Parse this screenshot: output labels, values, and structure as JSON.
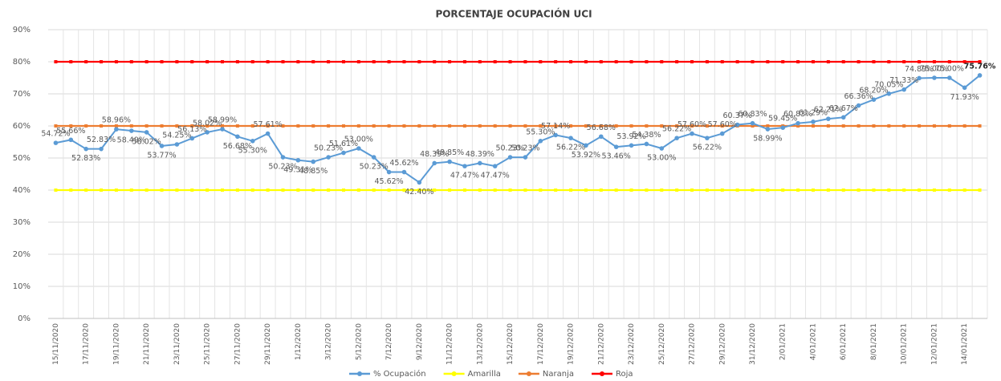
{
  "chart_data": {
    "type": "line",
    "title": "PORCENTAJE OCUPACIÓN UCI",
    "categories": [
      "15/11/2020",
      null,
      "17/11/2020",
      null,
      "19/11/2020",
      null,
      "21/11/2020",
      null,
      "23/11/2020",
      null,
      "25/11/2020",
      null,
      "27/11/2020",
      null,
      "29/11/2020",
      null,
      "1/12/2020",
      null,
      "3/12/2020",
      null,
      "5/12/2020",
      null,
      "7/12/2020",
      null,
      "9/12/2020",
      null,
      "11/12/2020",
      null,
      "13/12/2020",
      null,
      "15/12/2020",
      null,
      "17/12/2020",
      null,
      "19/12/2020",
      null,
      "21/12/2020",
      null,
      "23/12/2020",
      null,
      "25/12/2020",
      null,
      "27/12/2020",
      null,
      "29/12/2020",
      null,
      "31/12/2020",
      null,
      "2/01/2021",
      null,
      "4/01/2021",
      null,
      "6/01/2021",
      null,
      "8/01/2021",
      null,
      "10/01/2021",
      null,
      "12/01/2021",
      null,
      "14/01/2021",
      null
    ],
    "series": [
      {
        "name": "% Ocupación",
        "color": "#5b9bd5",
        "values": [
          54.72,
          55.66,
          52.83,
          52.83,
          58.96,
          58.49,
          58.02,
          53.77,
          54.25,
          56.13,
          58.02,
          58.99,
          56.68,
          55.3,
          57.61,
          50.23,
          49.31,
          48.85,
          50.23,
          51.61,
          53.0,
          50.23,
          45.62,
          45.62,
          42.4,
          48.39,
          48.85,
          47.47,
          48.39,
          47.47,
          50.23,
          50.23,
          55.3,
          57.14,
          56.22,
          53.92,
          56.68,
          53.46,
          53.92,
          54.38,
          53.0,
          56.22,
          57.6,
          56.22,
          57.6,
          60.37,
          60.83,
          58.99,
          59.45,
          60.83,
          61.29,
          62.21,
          62.67,
          66.36,
          68.2,
          70.05,
          71.33,
          74.89,
          75.0,
          75.0,
          71.93,
          75.76
        ],
        "value_labels": [
          "54.72%",
          "55.66%",
          "52.83%",
          "52.83%",
          "58.96%",
          "58.49%",
          "58.02%",
          "53.77%",
          "54.25%",
          "56.13%",
          "58.02%",
          "58.99%",
          "56.68%",
          "55.30%",
          "57.61%",
          "50.23%",
          "49.31%",
          "48.85%",
          "50.23%",
          "51.61%",
          "53.00%",
          "50.23%",
          "45.62%",
          "45.62%",
          "42.40%",
          "48.39%",
          "48.85%",
          "47.47%",
          "48.39%",
          "47.47%",
          "50.23%",
          "50.23%",
          "55.30%",
          "57.14%",
          "56.22%",
          "53.92%",
          "56.68%",
          "53.46%",
          "53.92%",
          "54.38%",
          "53.00%",
          "56.22%",
          "57.60%",
          "56.22%",
          "57.60%",
          "60.37%",
          "60.83%",
          "58.99%",
          "59.45%",
          "60.83%",
          "61.29%",
          "62.21%",
          "62.67%",
          "66.36%",
          "68.20%",
          "70.05%",
          "71.33%",
          "74.89%",
          "75.00%",
          "75.00%",
          "71.93%",
          "75.76%"
        ]
      },
      {
        "name": "Amarilla",
        "color": "#ffff00",
        "values": [
          40,
          40,
          40,
          40,
          40,
          40,
          40,
          40,
          40,
          40,
          40,
          40,
          40,
          40,
          40,
          40,
          40,
          40,
          40,
          40,
          40,
          40,
          40,
          40,
          40,
          40,
          40,
          40,
          40,
          40,
          40,
          40,
          40,
          40,
          40,
          40,
          40,
          40,
          40,
          40,
          40,
          40,
          40,
          40,
          40,
          40,
          40,
          40,
          40,
          40,
          40,
          40,
          40,
          40,
          40,
          40,
          40,
          40,
          40,
          40,
          40,
          40
        ]
      },
      {
        "name": "Naranja",
        "color": "#ed7d31",
        "values": [
          60,
          60,
          60,
          60,
          60,
          60,
          60,
          60,
          60,
          60,
          60,
          60,
          60,
          60,
          60,
          60,
          60,
          60,
          60,
          60,
          60,
          60,
          60,
          60,
          60,
          60,
          60,
          60,
          60,
          60,
          60,
          60,
          60,
          60,
          60,
          60,
          60,
          60,
          60,
          60,
          60,
          60,
          60,
          60,
          60,
          60,
          60,
          60,
          60,
          60,
          60,
          60,
          60,
          60,
          60,
          60,
          60,
          60,
          60,
          60,
          60,
          60
        ]
      },
      {
        "name": "Roja",
        "color": "#ff0000",
        "values": [
          80,
          80,
          80,
          80,
          80,
          80,
          80,
          80,
          80,
          80,
          80,
          80,
          80,
          80,
          80,
          80,
          80,
          80,
          80,
          80,
          80,
          80,
          80,
          80,
          80,
          80,
          80,
          80,
          80,
          80,
          80,
          80,
          80,
          80,
          80,
          80,
          80,
          80,
          80,
          80,
          80,
          80,
          80,
          80,
          80,
          80,
          80,
          80,
          80,
          80,
          80,
          80,
          80,
          80,
          80,
          80,
          80,
          80,
          80,
          80,
          80,
          80
        ]
      }
    ],
    "ylim": [
      0,
      90
    ],
    "yticks": [
      {
        "value": 0,
        "label": "0%"
      },
      {
        "value": 10,
        "label": "10%"
      },
      {
        "value": 20,
        "label": "20%"
      },
      {
        "value": 30,
        "label": "30%"
      },
      {
        "value": 40,
        "label": "40%"
      },
      {
        "value": 50,
        "label": "50%"
      },
      {
        "value": 60,
        "label": "60%"
      },
      {
        "value": 70,
        "label": "70%"
      },
      {
        "value": 80,
        "label": "80%"
      },
      {
        "value": 90,
        "label": "90%"
      }
    ],
    "grid": true,
    "legend": "bottom"
  }
}
